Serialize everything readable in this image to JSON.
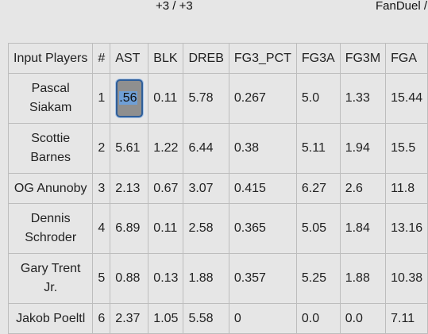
{
  "header": {
    "left_label": "+3 / +3",
    "right_label": "FanDuel /"
  },
  "table": {
    "columns": [
      "Input Players",
      "#",
      "AST",
      "BLK",
      "DREB",
      "FG3_PCT",
      "FG3A",
      "FG3M",
      "FGA"
    ],
    "rows": [
      {
        "player": "Pascal Siakam",
        "idx": "1",
        "ast": ".56",
        "blk": "0.11",
        "dreb": "5.78",
        "fg3_pct": "0.267",
        "fg3a": "5.0",
        "fg3m": "1.33",
        "fga": "15.44"
      },
      {
        "player": "Scottie Barnes",
        "idx": "2",
        "ast": "5.61",
        "blk": "1.22",
        "dreb": "6.44",
        "fg3_pct": "0.38",
        "fg3a": "5.11",
        "fg3m": "1.94",
        "fga": "15.5"
      },
      {
        "player": "OG Anunoby",
        "idx": "3",
        "ast": "2.13",
        "blk": "0.67",
        "dreb": "3.07",
        "fg3_pct": "0.415",
        "fg3a": "6.27",
        "fg3m": "2.6",
        "fga": "11.8"
      },
      {
        "player": "Dennis Schroder",
        "idx": "4",
        "ast": "6.89",
        "blk": "0.11",
        "dreb": "2.58",
        "fg3_pct": "0.365",
        "fg3a": "5.05",
        "fg3m": "1.84",
        "fga": "13.16"
      },
      {
        "player": "Gary Trent Jr.",
        "idx": "5",
        "ast": "0.88",
        "blk": "0.13",
        "dreb": "1.88",
        "fg3_pct": "0.357",
        "fg3a": "5.25",
        "fg3m": "1.88",
        "fga": "10.38"
      },
      {
        "player": "Jakob Poeltl",
        "idx": "6",
        "ast": "2.37",
        "blk": "1.05",
        "dreb": "5.58",
        "fg3_pct": "0",
        "fg3a": "0.0",
        "fg3m": "0.0",
        "fga": "7.11"
      }
    ]
  }
}
